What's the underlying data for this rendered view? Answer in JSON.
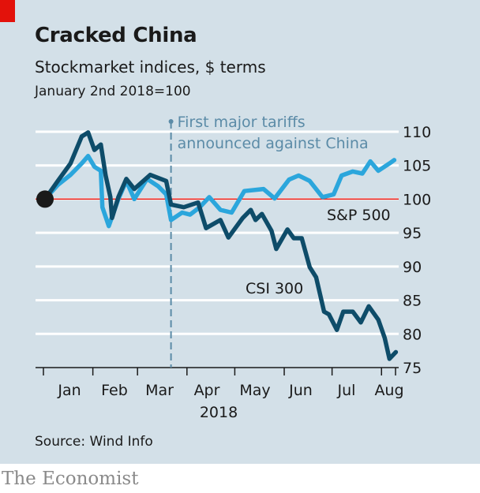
{
  "header": {
    "title": "Cracked China",
    "subtitle": "Stockmarket indices, $ terms",
    "note": "January 2nd 2018=100"
  },
  "footer": {
    "source": "Source: Wind Info",
    "brand": "The Economist"
  },
  "colors": {
    "background": "#d3e0e8",
    "csi300": "#0e4c69",
    "sp500": "#2ba6dc",
    "baseline": "#e3120b",
    "annotation": "#5b8ba7",
    "brand_tag": "#e3120b"
  },
  "chart_data": {
    "type": "line",
    "title": "Cracked China",
    "xlabel": "2018",
    "ylim": [
      75,
      110
    ],
    "yticks": [
      "110",
      "105",
      "100",
      "95",
      "90",
      "85",
      "80",
      "75"
    ],
    "xticks": [
      "Jan",
      "Feb",
      "Mar",
      "Apr",
      "May",
      "Jun",
      "Jul",
      "Aug"
    ],
    "grid": true,
    "annotation": {
      "date": "2018-03-22",
      "lines": [
        "First major tariffs",
        "announced against China"
      ]
    },
    "baseline": 100,
    "series": [
      {
        "name": "CSI 300",
        "points": [
          [
            "2018-01-02",
            100
          ],
          [
            "2018-01-10",
            102.7
          ],
          [
            "2018-01-18",
            105.3
          ],
          [
            "2018-01-25",
            109.3
          ],
          [
            "2018-01-29",
            109.9
          ],
          [
            "2018-02-02",
            107.3
          ],
          [
            "2018-02-06",
            108.1
          ],
          [
            "2018-02-09",
            103.5
          ],
          [
            "2018-02-12",
            100.3
          ],
          [
            "2018-02-13",
            97.2
          ],
          [
            "2018-02-17",
            100.3
          ],
          [
            "2018-02-22",
            103
          ],
          [
            "2018-02-27",
            101.5
          ],
          [
            "2018-03-09",
            103.6
          ],
          [
            "2018-03-19",
            102.7
          ],
          [
            "2018-03-22",
            99.2
          ],
          [
            "2018-03-30",
            98.8
          ],
          [
            "2018-04-08",
            99.5
          ],
          [
            "2018-04-13",
            95.7
          ],
          [
            "2018-04-22",
            96.9
          ],
          [
            "2018-04-27",
            94.3
          ],
          [
            "2018-05-06",
            97.2
          ],
          [
            "2018-05-11",
            98.4
          ],
          [
            "2018-05-14",
            96.9
          ],
          [
            "2018-05-18",
            97.8
          ],
          [
            "2018-05-24",
            95.3
          ],
          [
            "2018-05-27",
            92.6
          ],
          [
            "2018-06-03",
            95.5
          ],
          [
            "2018-06-07",
            94.2
          ],
          [
            "2018-06-12",
            94.2
          ],
          [
            "2018-06-17",
            89.9
          ],
          [
            "2018-06-21",
            88.4
          ],
          [
            "2018-06-26",
            83.3
          ],
          [
            "2018-06-29",
            82.9
          ],
          [
            "2018-07-04",
            80.6
          ],
          [
            "2018-07-08",
            83.3
          ],
          [
            "2018-07-14",
            83.3
          ],
          [
            "2018-07-19",
            81.7
          ],
          [
            "2018-07-24",
            84.1
          ],
          [
            "2018-07-30",
            82.1
          ],
          [
            "2018-08-03",
            79.4
          ],
          [
            "2018-08-06",
            76.3
          ],
          [
            "2018-08-10",
            77.3
          ]
        ]
      },
      {
        "name": "S&P 500",
        "points": [
          [
            "2018-01-02",
            100
          ],
          [
            "2018-01-10",
            102.1
          ],
          [
            "2018-01-18",
            103.6
          ],
          [
            "2018-01-25",
            105.3
          ],
          [
            "2018-01-29",
            106.4
          ],
          [
            "2018-02-02",
            104.8
          ],
          [
            "2018-02-06",
            104.2
          ],
          [
            "2018-02-07",
            98.8
          ],
          [
            "2018-02-11",
            96
          ],
          [
            "2018-02-17",
            100
          ],
          [
            "2018-02-22",
            102.7
          ],
          [
            "2018-02-27",
            100
          ],
          [
            "2018-03-07",
            103
          ],
          [
            "2018-03-14",
            101.9
          ],
          [
            "2018-03-19",
            100.7
          ],
          [
            "2018-03-22",
            96.9
          ],
          [
            "2018-03-29",
            98
          ],
          [
            "2018-04-03",
            97.7
          ],
          [
            "2018-04-09",
            98.8
          ],
          [
            "2018-04-15",
            100.3
          ],
          [
            "2018-04-22",
            98.4
          ],
          [
            "2018-04-29",
            98
          ],
          [
            "2018-05-07",
            101.2
          ],
          [
            "2018-05-19",
            101.5
          ],
          [
            "2018-05-26",
            100.1
          ],
          [
            "2018-06-04",
            102.9
          ],
          [
            "2018-06-10",
            103.5
          ],
          [
            "2018-06-17",
            102.7
          ],
          [
            "2018-06-25",
            100.3
          ],
          [
            "2018-07-02",
            100.7
          ],
          [
            "2018-07-07",
            103.5
          ],
          [
            "2018-07-14",
            104.1
          ],
          [
            "2018-07-20",
            103.8
          ],
          [
            "2018-07-25",
            105.6
          ],
          [
            "2018-07-30",
            104.2
          ],
          [
            "2018-08-06",
            105.3
          ],
          [
            "2018-08-09",
            105.8
          ]
        ]
      }
    ]
  }
}
